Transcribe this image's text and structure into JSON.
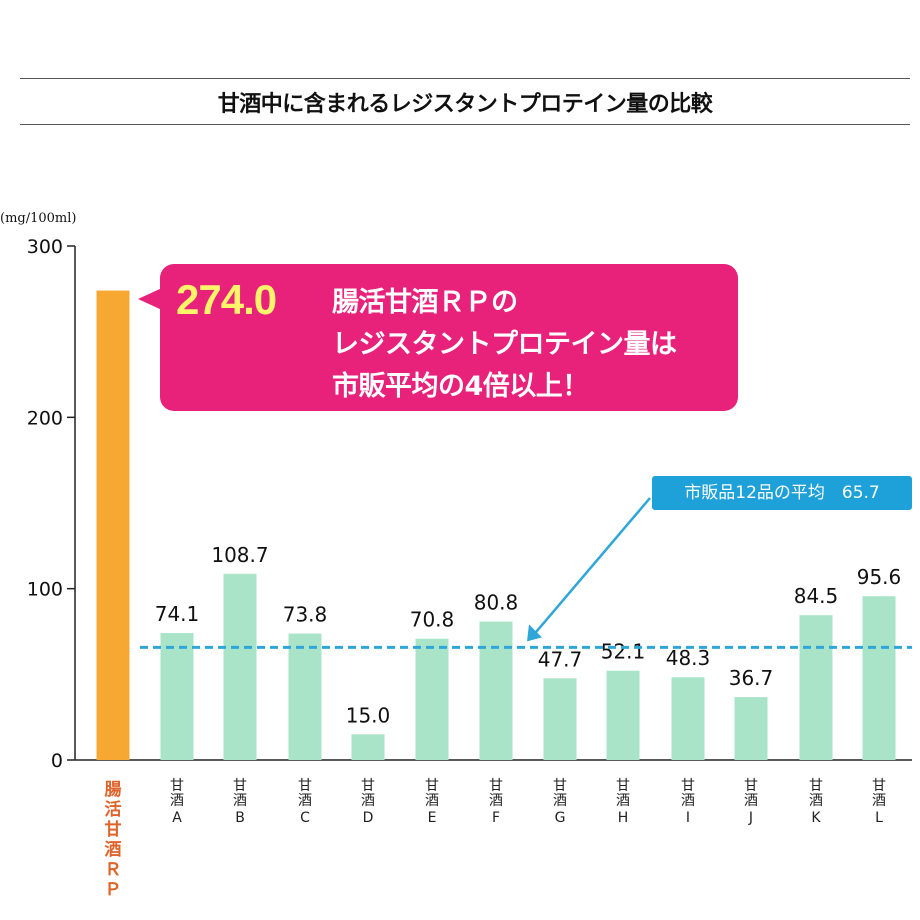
{
  "title": "甘酒中に含まれるレジスタントプロテイン量の比較",
  "callout": {
    "value": "274.0",
    "line1": "腸活甘酒ＲＰの",
    "line2": "レジスタントプロテイン量は",
    "line3": "市販平均の4倍以上！"
  },
  "average_label": "市販品12品の平均　65.7",
  "chart_data": {
    "type": "bar",
    "title": "甘酒中に含まれるレジスタントプロテイン量の比較",
    "ylabel": "(mg/100ml)",
    "xlabel": "",
    "ylim": [
      0,
      300
    ],
    "yticks": [
      "0",
      "100",
      "200",
      "300"
    ],
    "categories": [
      {
        "top": "腸活",
        "bottom": "甘酒ＲＰ",
        "highlight": true
      },
      {
        "top": "甘酒",
        "bottom": "A"
      },
      {
        "top": "甘酒",
        "bottom": "B"
      },
      {
        "top": "甘酒",
        "bottom": "C"
      },
      {
        "top": "甘酒",
        "bottom": "D"
      },
      {
        "top": "甘酒",
        "bottom": "E"
      },
      {
        "top": "甘酒",
        "bottom": "F"
      },
      {
        "top": "甘酒",
        "bottom": "G"
      },
      {
        "top": "甘酒",
        "bottom": "H"
      },
      {
        "top": "甘酒",
        "bottom": "I"
      },
      {
        "top": "甘酒",
        "bottom": "J"
      },
      {
        "top": "甘酒",
        "bottom": "K"
      },
      {
        "top": "甘酒",
        "bottom": "L"
      }
    ],
    "values": [
      274.0,
      74.1,
      108.7,
      73.8,
      15.0,
      70.8,
      80.8,
      47.7,
      52.1,
      48.3,
      36.7,
      84.5,
      95.6
    ],
    "data_labels": [
      "",
      "74.1",
      "108.7",
      "73.8",
      "15.0",
      "70.8",
      "80.8",
      "47.7",
      "52.1",
      "48.3",
      "36.7",
      "84.5",
      "95.6"
    ],
    "average": 65.7,
    "colors": {
      "highlight_bar": "#f7a833",
      "bar": "#a9e4c8",
      "highlight_label": "#e0632a",
      "average_line": "#2fa6d8",
      "callout": "#e8217a"
    }
  }
}
